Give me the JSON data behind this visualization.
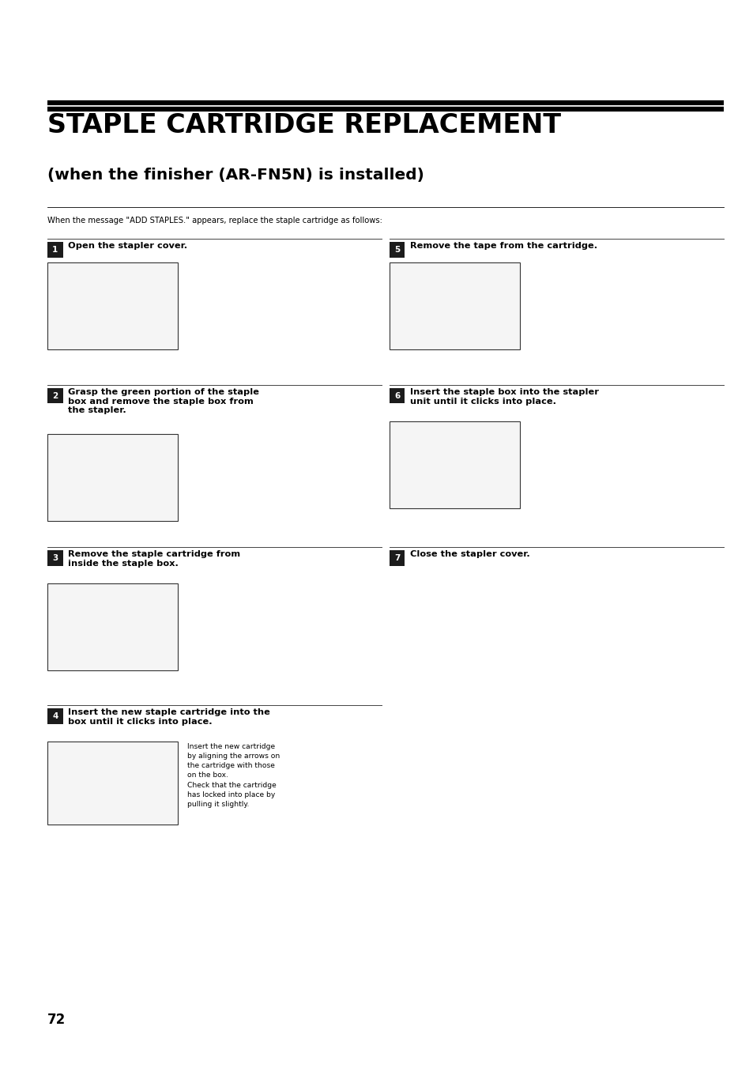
{
  "bg_color": "#ffffff",
  "page_width": 9.54,
  "page_height": 13.51,
  "title_main": "STAPLE CARTRIDGE REPLACEMENT",
  "title_sub": "(when the finisher (AR-FN5N) is installed)",
  "intro_text": "When the message \"ADD STAPLES.\" appears, replace the staple cartridge as follows:",
  "page_number": "72",
  "steps": [
    {
      "num": "1",
      "text": "Open the stapler cover.",
      "col": 0,
      "has_image": true,
      "note": "",
      "multiline_lines": 1
    },
    {
      "num": "2",
      "text": "Grasp the green portion of the staple\nbox and remove the staple box from\nthe stapler.",
      "col": 0,
      "has_image": true,
      "note": "",
      "multiline_lines": 3
    },
    {
      "num": "3",
      "text": "Remove the staple cartridge from\ninside the staple box.",
      "col": 0,
      "has_image": true,
      "note": "",
      "multiline_lines": 2
    },
    {
      "num": "4",
      "text": "Insert the new staple cartridge into the\nbox until it clicks into place.",
      "col": 0,
      "has_image": true,
      "note": "Insert the new cartridge\nby aligning the arrows on\nthe cartridge with those\non the box.\nCheck that the cartridge\nhas locked into place by\npulling it slightly.",
      "multiline_lines": 2
    },
    {
      "num": "5",
      "text": "Remove the tape from the cartridge.",
      "col": 1,
      "has_image": true,
      "note": "",
      "multiline_lines": 1
    },
    {
      "num": "6",
      "text": "Insert the staple box into the stapler\nunit until it clicks into place.",
      "col": 1,
      "has_image": true,
      "note": "",
      "multiline_lines": 2
    },
    {
      "num": "7",
      "text": "Close the stapler cover.",
      "col": 1,
      "has_image": false,
      "note": "",
      "multiline_lines": 1
    }
  ]
}
